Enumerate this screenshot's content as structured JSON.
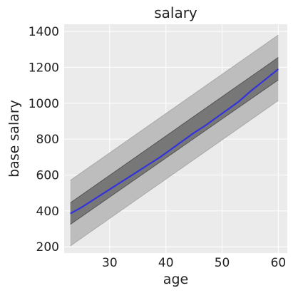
{
  "chart_data": {
    "type": "line",
    "title": "salary",
    "xlabel": "age",
    "ylabel": "base salary",
    "xlim": [
      21.9,
      61.6
    ],
    "ylim": [
      165,
      1440
    ],
    "x_ticks": [
      30,
      40,
      50,
      60
    ],
    "y_ticks": [
      200,
      400,
      600,
      800,
      1000,
      1200,
      1400
    ],
    "grid": true,
    "colors": {
      "plot_background": "#ebebeb",
      "grid": "#ffffff",
      "mean_line": "#3333dd",
      "inner_band": "#777777",
      "outer_band": "#bdbdbd"
    },
    "series": [
      {
        "kind": "mean",
        "x": [
          23,
          25,
          27,
          29,
          31,
          33,
          35,
          37,
          39,
          41,
          43,
          45,
          47,
          49,
          51,
          53,
          55,
          57,
          60
        ],
        "y": [
          385,
          420,
          460,
          500,
          540,
          580,
          620,
          660,
          700,
          745,
          790,
          835,
          875,
          920,
          965,
          1010,
          1065,
          1115,
          1190
        ]
      },
      {
        "kind": "inner_band",
        "x": [
          23,
          60
        ],
        "lower": [
          325,
          1130
        ],
        "upper": [
          445,
          1255
        ]
      },
      {
        "kind": "outer_band",
        "x": [
          23,
          60
        ],
        "lower": [
          205,
          1015
        ],
        "upper": [
          570,
          1380
        ]
      }
    ]
  }
}
